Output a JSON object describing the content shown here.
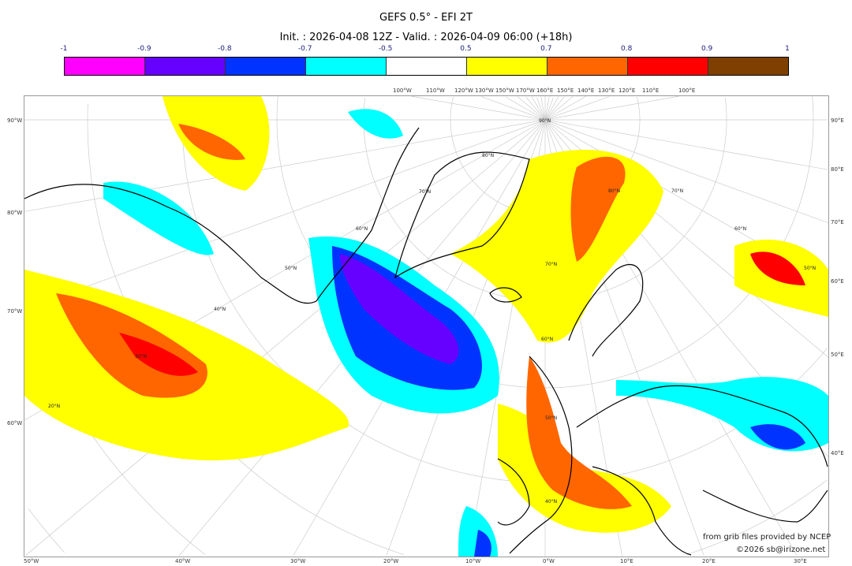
{
  "title": "GEFS 0.5° - EFI 2T",
  "subtitle": "Init. : 2026-04-08 12Z - Valid. : 2026-04-09 06:00 (+18h)",
  "colorbar": {
    "ticks": [
      "-1",
      "-0.9",
      "-0.8",
      "-0.7",
      "-0.5",
      "0.5",
      "0.7",
      "0.8",
      "0.9",
      "1"
    ],
    "colors": [
      "#ff00ff",
      "#6600ff",
      "#0033ff",
      "#00ffff",
      "#ffffff",
      "#ffff00",
      "#ff6600",
      "#ff0000",
      "#7f3f00"
    ]
  },
  "axes": {
    "top": [
      "100°W",
      "110°W",
      "120°W",
      "130°W",
      "150°W",
      "170°W",
      "160°E",
      "150°E",
      "140°E",
      "130°E",
      "120°E",
      "110°E",
      "100°E"
    ],
    "bottom": [
      "50°W",
      "40°W",
      "30°W",
      "20°W",
      "10°W",
      "0°W",
      "10°E",
      "20°E",
      "30°E"
    ],
    "left": [
      "90°W",
      "80°W",
      "70°W",
      "60°W"
    ],
    "right": [
      "90°E",
      "80°E",
      "70°E",
      "60°E",
      "50°E",
      "40°E"
    ],
    "lat_labels": [
      "90°N",
      "80°N",
      "70°N",
      "60°N",
      "50°N",
      "40°N",
      "30°N",
      "20°N",
      "80°N",
      "70°N",
      "60°N",
      "50°N",
      "40°N",
      "70°N",
      "60°N",
      "50°N"
    ]
  },
  "credits": {
    "source": "from grib files provided by NCEP",
    "copyright": "©2026 sb@irizone.net"
  }
}
